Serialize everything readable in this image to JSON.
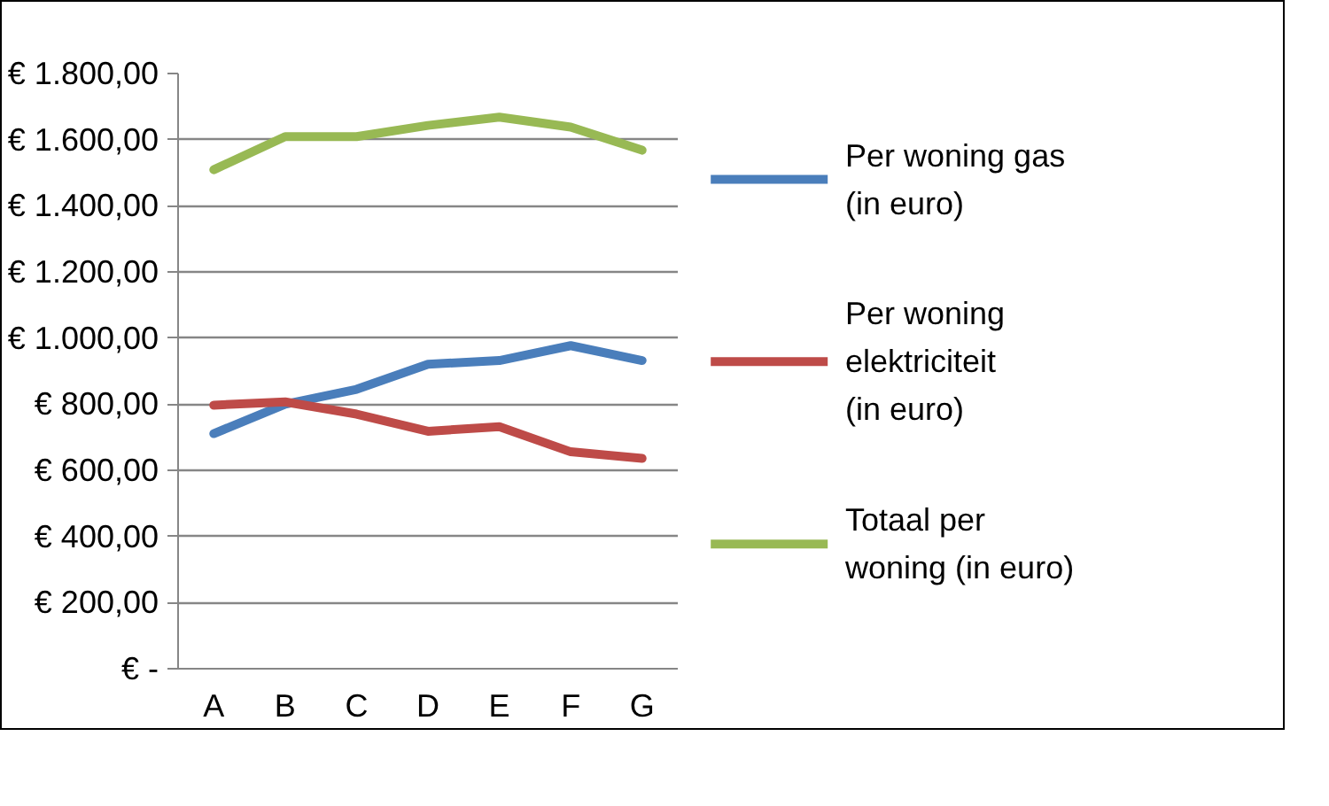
{
  "chart_data": {
    "type": "line",
    "categories": [
      "A",
      "B",
      "C",
      "D",
      "E",
      "F",
      "G"
    ],
    "series": [
      {
        "name": "Per woning gas (in euro)",
        "color": "#4a7ebb",
        "values": [
          711,
          800,
          845,
          921,
          932,
          977,
          932
        ]
      },
      {
        "name": "Per woning elektriciteit (in euro)",
        "color": "#be4b48",
        "values": [
          797,
          807,
          770,
          718,
          732,
          656,
          636
        ]
      },
      {
        "name": "Totaal per woning (in euro)",
        "color": "#98b954",
        "values": [
          1509,
          1609,
          1609,
          1643,
          1668,
          1638,
          1568
        ]
      }
    ],
    "ylim": [
      0,
      1800
    ],
    "yticks": [
      {
        "value": 0,
        "label": "€ -"
      },
      {
        "value": 200,
        "label": "€ 200,00"
      },
      {
        "value": 400,
        "label": "€ 400,00"
      },
      {
        "value": 600,
        "label": "€ 600,00"
      },
      {
        "value": 800,
        "label": "€ 800,00"
      },
      {
        "value": 1000,
        "label": "€ 1.000,00"
      },
      {
        "value": 1200,
        "label": "€ 1.200,00"
      },
      {
        "value": 1400,
        "label": "€ 1.400,00"
      },
      {
        "value": 1600,
        "label": "€ 1.600,00"
      },
      {
        "value": 1800,
        "label": "€ 1.800,00"
      }
    ],
    "grid": "y",
    "legend": "right",
    "marker": "none",
    "line_style": "solid"
  }
}
